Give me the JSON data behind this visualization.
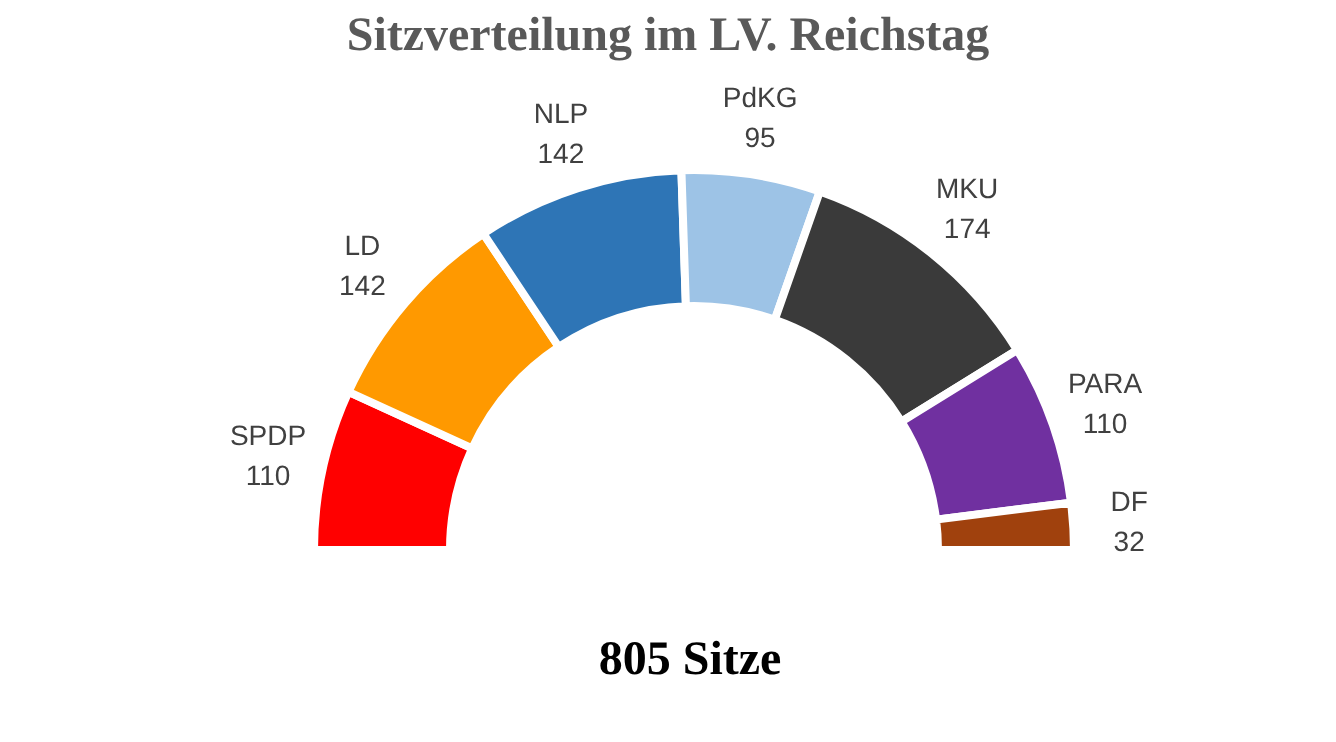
{
  "chart_data": {
    "type": "donut",
    "title": "Sitzverteilung im LV. Reichstag",
    "categories": [
      "SPDP",
      "LD",
      "NLP",
      "PdKG",
      "MKU",
      "PARA",
      "DF"
    ],
    "values": [
      110,
      142,
      142,
      95,
      174,
      110,
      32
    ],
    "colors": [
      "#ff0000",
      "#ff9900",
      "#2e75b6",
      "#9dc3e6",
      "#3a3a3a",
      "#7030a0",
      "#a0410d"
    ],
    "data_labels": true,
    "annotations": [
      "805 Sitze"
    ]
  }
}
